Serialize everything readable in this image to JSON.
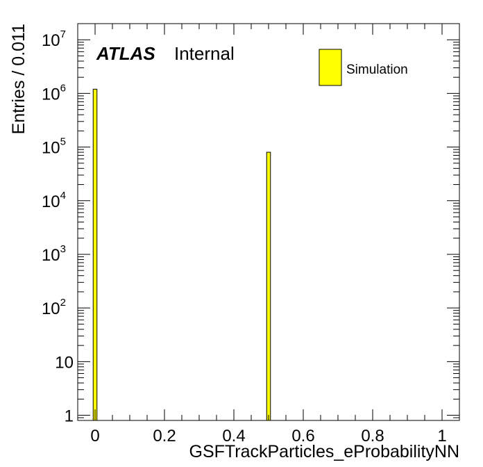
{
  "chart_data": {
    "type": "bar",
    "xlabel": "GSFTrackParticles_eProbabilityNN",
    "ylabel": "Entries / 0.011",
    "xlim": [
      -0.05,
      1.05
    ],
    "ylim_log": [
      0.8,
      20000000
    ],
    "y_scale": "log",
    "bin_width": 0.011,
    "x_ticks": [
      {
        "value": 0,
        "label": "0"
      },
      {
        "value": 0.2,
        "label": "0.2"
      },
      {
        "value": 0.4,
        "label": "0.4"
      },
      {
        "value": 0.6,
        "label": "0.6"
      },
      {
        "value": 0.8,
        "label": "0.8"
      },
      {
        "value": 1,
        "label": "1"
      }
    ],
    "y_ticks": [
      {
        "value": 1,
        "base": "1",
        "exp": ""
      },
      {
        "value": 10,
        "base": "10",
        "exp": ""
      },
      {
        "value": 100,
        "base": "10",
        "exp": "2"
      },
      {
        "value": 1000,
        "base": "10",
        "exp": "3"
      },
      {
        "value": 10000,
        "base": "10",
        "exp": "4"
      },
      {
        "value": 100000,
        "base": "10",
        "exp": "5"
      },
      {
        "value": 1000000,
        "base": "10",
        "exp": "6"
      },
      {
        "value": 10000000,
        "base": "10",
        "exp": "7"
      }
    ],
    "series": [
      {
        "name": "Simulation",
        "color": "#ffff00",
        "bins": [
          {
            "x": 0.0,
            "value": 1200000
          },
          {
            "x": 0.5,
            "value": 80000
          }
        ]
      }
    ],
    "legend_position": "top-right",
    "grid": false
  },
  "labels": {
    "atlas": "ATLAS",
    "internal": "Internal"
  }
}
